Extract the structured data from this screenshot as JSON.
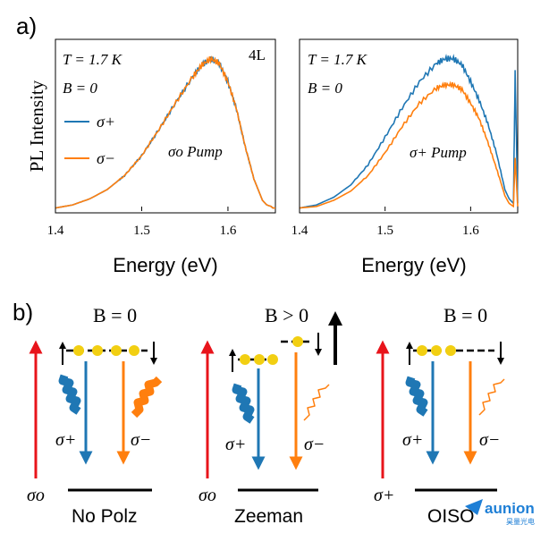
{
  "figure": {
    "panel_a_label": "a)",
    "panel_b_label": "b)"
  },
  "chart_data": [
    {
      "type": "line",
      "xlabel": "Energy (eV)",
      "ylabel": "PL Intensity",
      "xlim": [
        1.4,
        1.655
      ],
      "x_ticks": [
        "1.4",
        "1.5",
        "1.6"
      ],
      "annotations": {
        "temperature": "T = 1.7 K",
        "field": "B = 0",
        "pump": "σo Pump",
        "sample": "4L"
      },
      "legend": [
        "σ+",
        "σ−"
      ],
      "x": [
        1.4,
        1.42,
        1.44,
        1.46,
        1.48,
        1.5,
        1.52,
        1.54,
        1.56,
        1.57,
        1.58,
        1.59,
        1.6,
        1.61,
        1.62,
        1.63,
        1.64,
        1.645,
        1.65,
        1.652,
        1.655
      ],
      "series": [
        {
          "name": "σ+",
          "color": "#1f77b4",
          "values": [
            0.02,
            0.04,
            0.08,
            0.14,
            0.23,
            0.36,
            0.53,
            0.71,
            0.88,
            0.95,
            0.99,
            0.96,
            0.84,
            0.66,
            0.42,
            0.21,
            0.07,
            0.04,
            0.03,
            0.02,
            0.02
          ]
        },
        {
          "name": "σ−",
          "color": "#ff7f0e",
          "values": [
            0.02,
            0.04,
            0.08,
            0.14,
            0.23,
            0.36,
            0.53,
            0.71,
            0.88,
            0.95,
            0.99,
            0.96,
            0.84,
            0.66,
            0.42,
            0.21,
            0.07,
            0.04,
            0.03,
            0.02,
            0.02
          ]
        }
      ]
    },
    {
      "type": "line",
      "xlabel": "Energy (eV)",
      "ylabel": "",
      "xlim": [
        1.4,
        1.655
      ],
      "x_ticks": [
        "1.4",
        "1.5",
        "1.6"
      ],
      "annotations": {
        "temperature": "T = 1.7 K",
        "field": "B = 0",
        "pump": "σ+ Pump"
      },
      "x": [
        1.4,
        1.42,
        1.44,
        1.46,
        1.48,
        1.5,
        1.52,
        1.54,
        1.56,
        1.57,
        1.58,
        1.59,
        1.6,
        1.61,
        1.62,
        1.63,
        1.64,
        1.645,
        1.65,
        1.652,
        1.655
      ],
      "series": [
        {
          "name": "σ+",
          "color": "#1f77b4",
          "values": [
            0.02,
            0.04,
            0.09,
            0.17,
            0.3,
            0.48,
            0.67,
            0.84,
            0.96,
            0.99,
            0.99,
            0.95,
            0.84,
            0.72,
            0.57,
            0.38,
            0.14,
            0.08,
            0.05,
            0.9,
            0.05
          ]
        },
        {
          "name": "σ−",
          "color": "#ff7f0e",
          "values": [
            0.02,
            0.03,
            0.07,
            0.13,
            0.23,
            0.38,
            0.55,
            0.7,
            0.8,
            0.82,
            0.82,
            0.79,
            0.7,
            0.6,
            0.45,
            0.28,
            0.1,
            0.05,
            0.03,
            0.35,
            0.03
          ]
        }
      ]
    }
  ],
  "diagrams": [
    {
      "field": "B = 0",
      "pump": "σo",
      "caption": "No Polz",
      "emit_left": "σ+",
      "emit_right": "σ−"
    },
    {
      "field": "B > 0",
      "pump": "σo",
      "caption": "Zeeman",
      "emit_left": "σ+",
      "emit_right": "σ−"
    },
    {
      "field": "B = 0",
      "pump": "σ+",
      "caption": "OISO",
      "emit_left": "σ+",
      "emit_right": "σ−"
    }
  ],
  "watermark": {
    "brand": "aunion",
    "sub": "昊量光电"
  },
  "colors": {
    "sigma_plus": "#1f77b4",
    "sigma_minus": "#ff7f0e",
    "pump": "#e8141b",
    "dot": "#f2cf12"
  }
}
